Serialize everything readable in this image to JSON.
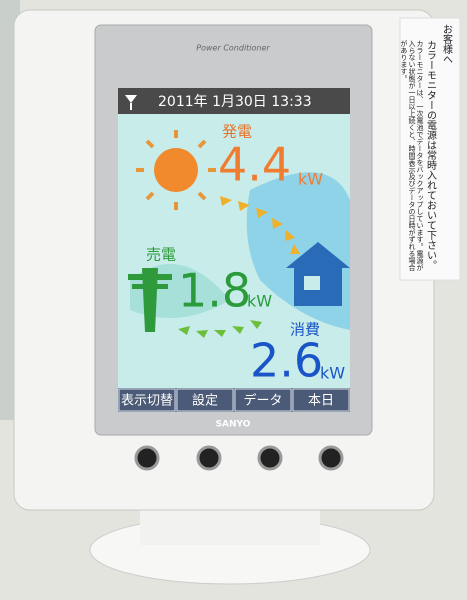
{
  "device": {
    "model_label": "Power Conditioner",
    "brand": "SANYO"
  },
  "screen": {
    "status": "2011年 1月30日 13:33",
    "generation": {
      "label": "発電",
      "value": "4.4",
      "unit": "kW"
    },
    "selling": {
      "label": "売電",
      "value": "1.8",
      "unit": "kW"
    },
    "consumption": {
      "label": "消費",
      "value": "2.6",
      "unit": "kW"
    },
    "buttons": [
      "表示切替",
      "設定",
      "データ",
      "本日"
    ]
  },
  "note": {
    "heading": "お客様へ",
    "main": "カラーモニターの電源は常時入れておいて下さい。",
    "detail": "カラーモニターは、一次電池でデータをバックアップしています。電源が入らない状態が一日以上続くと、時間表示及びデータの日時がずれる場合があります。"
  }
}
